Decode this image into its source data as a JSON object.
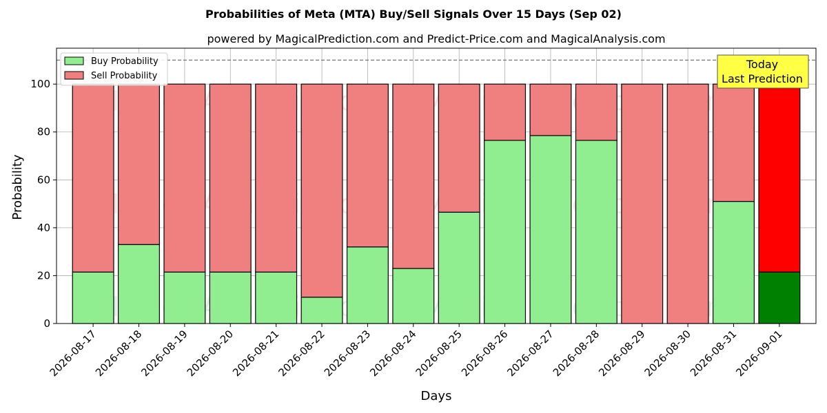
{
  "chart_data": {
    "type": "bar",
    "stacked": true,
    "title": "Probabilities of Meta (MTA) Buy/Sell Signals Over 15 Days (Sep 02)",
    "subtitle": "powered by MagicalPrediction.com and Predict-Price.com and MagicalAnalysis.com",
    "xlabel": "Days",
    "ylabel": "Probability",
    "ylim": [
      0,
      115
    ],
    "yticks": [
      0,
      20,
      40,
      60,
      80,
      100
    ],
    "grid": true,
    "legend_position": "top-left",
    "reference_line": 110,
    "categories": [
      "2026-08-17",
      "2026-08-18",
      "2026-08-19",
      "2026-08-20",
      "2026-08-21",
      "2026-08-22",
      "2026-08-23",
      "2026-08-24",
      "2026-08-25",
      "2026-08-26",
      "2026-08-27",
      "2026-08-28",
      "2026-08-29",
      "2026-08-30",
      "2026-08-31",
      "2026-09-01"
    ],
    "series": [
      {
        "name": "Buy Probability",
        "color": "#90ee90",
        "values": [
          21.5,
          33,
          21.5,
          21.5,
          21.5,
          11,
          32,
          23,
          46.5,
          76.5,
          78.5,
          76.5,
          0,
          0,
          51,
          21.5
        ]
      },
      {
        "name": "Sell Probability",
        "color": "#f08080",
        "values": [
          78.5,
          67,
          78.5,
          78.5,
          78.5,
          89,
          68,
          77,
          53.5,
          23.5,
          21.5,
          23.5,
          100,
          100,
          49,
          78.5
        ]
      }
    ],
    "highlight": {
      "index": 15,
      "buy_color": "#008000",
      "sell_color": "#ff0000"
    },
    "annotation": {
      "lines": [
        "Today",
        "Last Prediction"
      ],
      "background": "#ffff44"
    },
    "watermarks": [
      "MagicalAnalysis.com",
      "MagicalPrediction.com"
    ]
  }
}
